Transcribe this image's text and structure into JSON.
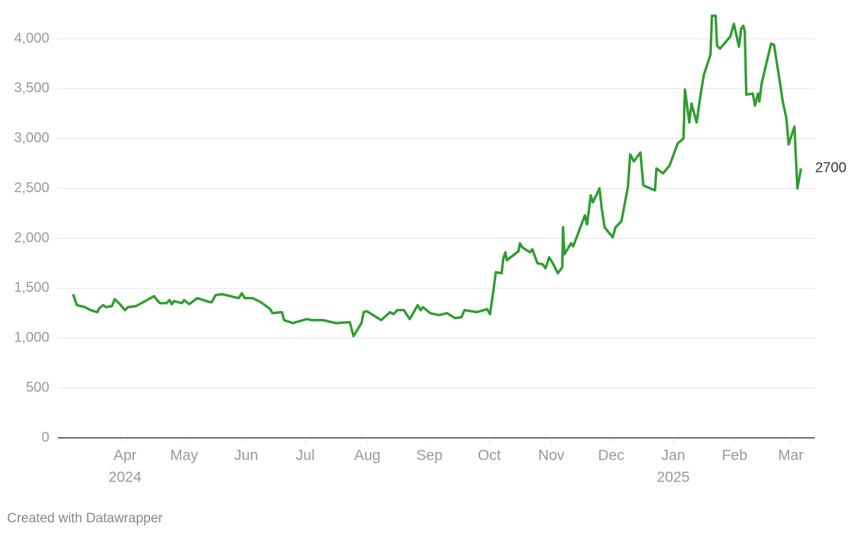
{
  "chart_data": {
    "type": "line",
    "credit": "Created with Datawrapper",
    "color": "#2f9d2f",
    "x": [
      2024.178,
      2024.183,
      2024.194,
      2024.202,
      2024.211,
      2024.214,
      2024.219,
      2024.223,
      2024.231,
      2024.235,
      2024.242,
      2024.249,
      2024.253,
      2024.264,
      2024.289,
      2024.293,
      2024.297,
      2024.306,
      2024.31,
      2024.313,
      2024.316,
      2024.327,
      2024.33,
      2024.337,
      2024.348,
      2024.365,
      2024.368,
      2024.373,
      2024.382,
      2024.405,
      2024.409,
      2024.413,
      2024.424,
      2024.435,
      2024.448,
      2024.451,
      2024.464,
      2024.467,
      2024.479,
      2024.498,
      2024.505,
      2024.52,
      2024.538,
      2024.557,
      2024.562,
      2024.573,
      2024.576,
      2024.58,
      2024.6,
      2024.612,
      2024.617,
      2024.622,
      2024.631,
      2024.639,
      2024.65,
      2024.654,
      2024.657,
      2024.667,
      2024.679,
      2024.69,
      2024.701,
      2024.71,
      2024.714,
      2024.731,
      2024.745,
      2024.749,
      2024.753,
      2024.757,
      2024.765,
      2024.767,
      2024.77,
      2024.772,
      2024.788,
      2024.79,
      2024.793,
      2024.804,
      2024.807,
      2024.814,
      2024.821,
      2024.825,
      2024.83,
      2024.835,
      2024.842,
      2024.848,
      2024.849,
      2024.851,
      2024.86,
      2024.863,
      2024.879,
      2024.882,
      2024.887,
      2024.89,
      2024.899,
      2024.902,
      2024.906,
      2024.917,
      2024.921,
      2024.929,
      2024.938,
      2024.941,
      2024.946,
      2024.955,
      2024.959,
      2024.975,
      2024.977,
      2024.986,
      2024.995,
      2025.006,
      2025.014,
      2025.016,
      2025.022,
      2025.025,
      2025.032,
      2025.037,
      2025.042,
      2025.051,
      2025.053,
      2025.058,
      2025.06,
      2025.064,
      2025.078,
      2025.083,
      2025.09,
      2025.093,
      2025.096,
      2025.098,
      2025.1,
      2025.109,
      2025.112,
      2025.116,
      2025.118,
      2025.121,
      2025.134,
      2025.138,
      2025.147,
      2025.15,
      2025.155,
      2025.158,
      2025.166,
      2025.17,
      2025.175
    ],
    "values": [
      1440,
      1330,
      1310,
      1280,
      1260,
      1300,
      1330,
      1310,
      1320,
      1390,
      1340,
      1280,
      1310,
      1320,
      1420,
      1380,
      1350,
      1350,
      1380,
      1340,
      1370,
      1350,
      1380,
      1340,
      1400,
      1360,
      1360,
      1430,
      1440,
      1400,
      1450,
      1400,
      1400,
      1360,
      1290,
      1250,
      1260,
      1180,
      1150,
      1190,
      1180,
      1180,
      1150,
      1160,
      1020,
      1150,
      1260,
      1270,
      1180,
      1260,
      1240,
      1280,
      1280,
      1190,
      1330,
      1280,
      1310,
      1250,
      1230,
      1250,
      1200,
      1210,
      1280,
      1260,
      1290,
      1240,
      1440,
      1660,
      1650,
      1790,
      1860,
      1780,
      1870,
      1950,
      1910,
      1860,
      1890,
      1750,
      1740,
      1700,
      1810,
      1750,
      1650,
      1710,
      2110,
      1840,
      1950,
      1920,
      2230,
      2140,
      2430,
      2360,
      2500,
      2300,
      2110,
      2010,
      2110,
      2170,
      2520,
      2840,
      2770,
      2860,
      2530,
      2480,
      2700,
      2650,
      2730,
      2950,
      3000,
      3490,
      3160,
      3350,
      3160,
      3420,
      3640,
      3840,
      4230,
      4230,
      3930,
      3900,
      4020,
      4150,
      3920,
      4100,
      4130,
      4070,
      3440,
      3450,
      3330,
      3450,
      3370,
      3550,
      3950,
      3940,
      3520,
      3370,
      3200,
      2940,
      3120,
      2500,
      2700
    ],
    "xlim": [
      2024.157,
      2025.194
    ],
    "xticks": [
      {
        "value": 2024.249,
        "label": "Apr"
      },
      {
        "value": 2024.33,
        "label": "May"
      },
      {
        "value": 2024.415,
        "label": "Jun"
      },
      {
        "value": 2024.496,
        "label": "Jul"
      },
      {
        "value": 2024.581,
        "label": "Aug"
      },
      {
        "value": 2024.666,
        "label": "Sep"
      },
      {
        "value": 2024.748,
        "label": "Oct"
      },
      {
        "value": 2024.833,
        "label": "Nov"
      },
      {
        "value": 2024.915,
        "label": "Dec"
      },
      {
        "value": 2025.0,
        "label": "Jan"
      },
      {
        "value": 2025.084,
        "label": "Feb"
      },
      {
        "value": 2025.161,
        "label": "Mar"
      }
    ],
    "year_labels": [
      {
        "value": 2024.249,
        "label": "2024"
      },
      {
        "value": 2025.0,
        "label": "2025"
      }
    ],
    "ylim": [
      0,
      4000
    ],
    "yticks": [
      0,
      500,
      {
        "value": 1000,
        "label": "1,000"
      },
      {
        "value": 1500,
        "label": "1,500"
      },
      {
        "value": 2000,
        "label": "2,000"
      },
      {
        "value": 2500,
        "label": "2,500"
      },
      {
        "value": 3000,
        "label": "3,000"
      },
      {
        "value": 3500,
        "label": "3,500"
      },
      {
        "value": 4000,
        "label": "4,000"
      }
    ],
    "grid": true
  }
}
